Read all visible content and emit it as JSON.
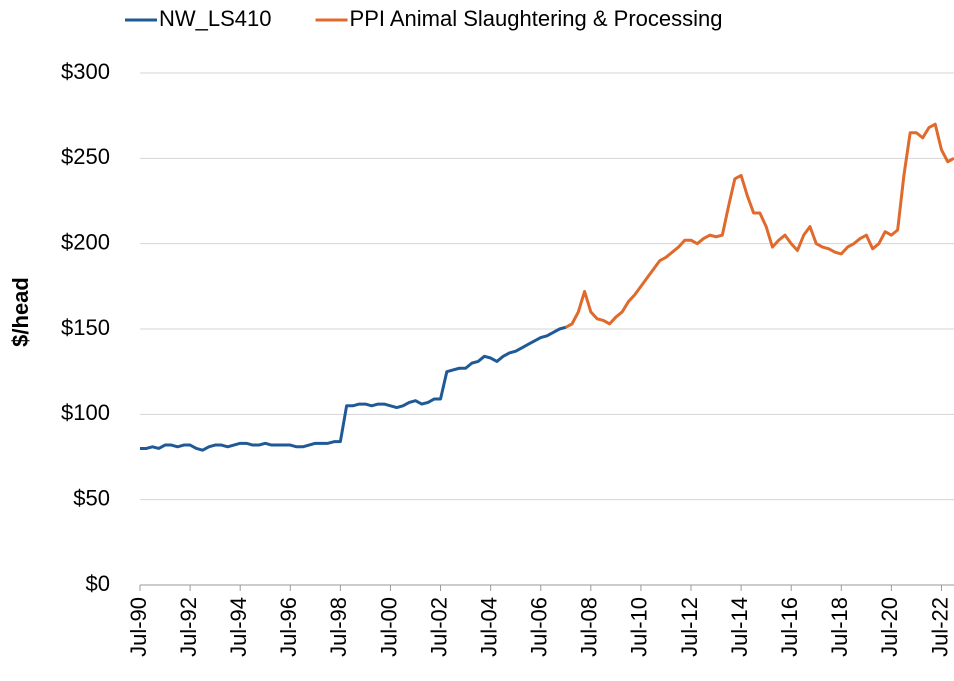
{
  "chart_data": {
    "type": "line",
    "y_label": "$/head",
    "x": [
      "1990-07",
      "1990-10",
      "1991-01",
      "1991-04",
      "1991-07",
      "1991-10",
      "1992-01",
      "1992-04",
      "1992-07",
      "1992-10",
      "1993-01",
      "1993-04",
      "1993-07",
      "1993-10",
      "1994-01",
      "1994-04",
      "1994-07",
      "1994-10",
      "1995-01",
      "1995-04",
      "1995-07",
      "1995-10",
      "1996-01",
      "1996-04",
      "1996-07",
      "1996-10",
      "1997-01",
      "1997-04",
      "1997-07",
      "1997-10",
      "1998-01",
      "1998-04",
      "1998-07",
      "1998-10",
      "1999-01",
      "1999-04",
      "1999-07",
      "1999-10",
      "2000-01",
      "2000-04",
      "2000-07",
      "2000-10",
      "2001-01",
      "2001-04",
      "2001-07",
      "2001-10",
      "2002-01",
      "2002-04",
      "2002-07",
      "2002-10",
      "2003-01",
      "2003-04",
      "2003-07",
      "2003-10",
      "2004-01",
      "2004-04",
      "2004-07",
      "2004-10",
      "2005-01",
      "2005-04",
      "2005-07",
      "2005-10",
      "2006-01",
      "2006-04",
      "2006-07",
      "2006-10",
      "2007-01",
      "2007-04",
      "2007-07",
      "2007-10",
      "2008-01",
      "2008-04",
      "2008-07",
      "2008-10",
      "2009-01",
      "2009-04",
      "2009-07",
      "2009-10",
      "2010-01",
      "2010-04",
      "2010-07",
      "2010-10",
      "2011-01",
      "2011-04",
      "2011-07",
      "2011-10",
      "2012-01",
      "2012-04",
      "2012-07",
      "2012-10",
      "2013-01",
      "2013-04",
      "2013-07",
      "2013-10",
      "2014-01",
      "2014-04",
      "2014-07",
      "2014-10",
      "2015-01",
      "2015-04",
      "2015-07",
      "2015-10",
      "2016-01",
      "2016-04",
      "2016-07",
      "2016-10",
      "2017-01",
      "2017-04",
      "2017-07",
      "2017-10",
      "2018-01",
      "2018-04",
      "2018-07",
      "2018-10",
      "2019-01",
      "2019-04",
      "2019-07",
      "2019-10",
      "2020-01",
      "2020-04",
      "2020-07",
      "2020-10",
      "2021-01",
      "2021-04",
      "2021-07",
      "2021-10",
      "2022-01",
      "2022-04",
      "2022-07",
      "2022-10",
      "2023-01"
    ],
    "series": [
      {
        "name": "NW_LS410",
        "color": "#1f5a96",
        "values": [
          80,
          80,
          81,
          80,
          82,
          82,
          81,
          82,
          82,
          80,
          79,
          81,
          82,
          82,
          81,
          82,
          83,
          83,
          82,
          82,
          83,
          82,
          82,
          82,
          82,
          81,
          81,
          82,
          83,
          83,
          83,
          84,
          84,
          105,
          105,
          106,
          106,
          105,
          106,
          106,
          105,
          104,
          105,
          107,
          108,
          106,
          107,
          109,
          109,
          125,
          126,
          127,
          127,
          130,
          131,
          134,
          133,
          131,
          134,
          136,
          137,
          139,
          141,
          143,
          145,
          146,
          148,
          150,
          151,
          null,
          null,
          null,
          null,
          null,
          null,
          null,
          null,
          null,
          null,
          null,
          null,
          null,
          null,
          null,
          null,
          null,
          null,
          null,
          null,
          null,
          null,
          null,
          null,
          null,
          null,
          null,
          null,
          null,
          null,
          null,
          null,
          null,
          null,
          null,
          null,
          null,
          null,
          null,
          null,
          null,
          null,
          null,
          null,
          null,
          null,
          null,
          null,
          null,
          null,
          null,
          null,
          null,
          null,
          null,
          null,
          null,
          null,
          null,
          null,
          null,
          null
        ]
      },
      {
        "name": "PPI Animal Slaughtering & Processing",
        "color": "#e06a2c",
        "values": [
          null,
          null,
          null,
          null,
          null,
          null,
          null,
          null,
          null,
          null,
          null,
          null,
          null,
          null,
          null,
          null,
          null,
          null,
          null,
          null,
          null,
          null,
          null,
          null,
          null,
          null,
          null,
          null,
          null,
          null,
          null,
          null,
          null,
          null,
          null,
          null,
          null,
          null,
          null,
          null,
          null,
          null,
          null,
          null,
          null,
          null,
          null,
          null,
          null,
          null,
          null,
          null,
          null,
          null,
          null,
          null,
          null,
          null,
          null,
          null,
          null,
          null,
          null,
          null,
          null,
          null,
          null,
          null,
          151,
          153,
          160,
          172,
          160,
          156,
          155,
          153,
          157,
          160,
          166,
          170,
          175,
          180,
          185,
          190,
          192,
          195,
          198,
          202,
          202,
          200,
          203,
          205,
          204,
          205,
          222,
          238,
          240,
          228,
          218,
          218,
          210,
          198,
          202,
          205,
          200,
          196,
          205,
          210,
          200,
          198,
          197,
          195,
          194,
          198,
          200,
          203,
          205,
          197,
          200,
          207,
          205,
          208,
          240,
          265,
          265,
          262,
          268,
          270,
          255,
          248,
          250
        ]
      }
    ],
    "xlim": [
      "1990-07",
      "2023-01"
    ],
    "xticks": [
      {
        "value": "1990-07",
        "label": "Jul-90"
      },
      {
        "value": "1992-07",
        "label": "Jul-92"
      },
      {
        "value": "1994-07",
        "label": "Jul-94"
      },
      {
        "value": "1996-07",
        "label": "Jul-96"
      },
      {
        "value": "1998-07",
        "label": "Jul-98"
      },
      {
        "value": "2000-07",
        "label": "Jul-00"
      },
      {
        "value": "2002-07",
        "label": "Jul-02"
      },
      {
        "value": "2004-07",
        "label": "Jul-04"
      },
      {
        "value": "2006-07",
        "label": "Jul-06"
      },
      {
        "value": "2008-07",
        "label": "Jul-08"
      },
      {
        "value": "2010-07",
        "label": "Jul-10"
      },
      {
        "value": "2012-07",
        "label": "Jul-12"
      },
      {
        "value": "2014-07",
        "label": "Jul-14"
      },
      {
        "value": "2016-07",
        "label": "Jul-16"
      },
      {
        "value": "2018-07",
        "label": "Jul-18"
      },
      {
        "value": "2020-07",
        "label": "Jul-20"
      },
      {
        "value": "2022-07",
        "label": "Jul-22"
      }
    ],
    "ylim": [
      0,
      300
    ],
    "yticks": [
      {
        "value": 0,
        "label": "$0"
      },
      {
        "value": 50,
        "label": "$50"
      },
      {
        "value": 100,
        "label": "$100"
      },
      {
        "value": 150,
        "label": "$150"
      },
      {
        "value": 200,
        "label": "$200"
      },
      {
        "value": 250,
        "label": "$250"
      },
      {
        "value": 300,
        "label": "$300"
      }
    ],
    "grid": true,
    "legend": "top"
  }
}
